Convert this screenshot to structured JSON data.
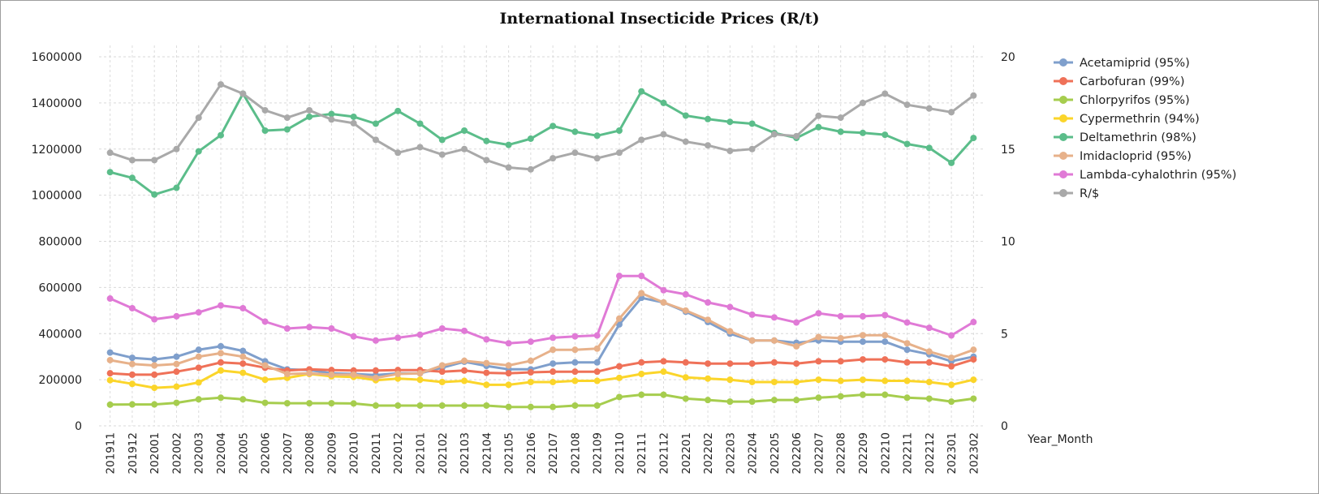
{
  "chart_data": {
    "type": "line",
    "title": "International Insecticide Prices (R/t)",
    "xlabel": "Year_Month",
    "ylabel": "",
    "y2label": "",
    "ylim": [
      0,
      1600000
    ],
    "y2lim": [
      0,
      20
    ],
    "yticks": [
      "0",
      "200000",
      "400000",
      "600000",
      "800000",
      "1000000",
      "1200000",
      "1400000",
      "1600000"
    ],
    "y2ticks": [
      "0",
      "5",
      "10",
      "15",
      "20"
    ],
    "grid": "on",
    "legend_position": "right",
    "categories": [
      "201911",
      "201912",
      "202001",
      "202002",
      "202003",
      "202004",
      "202005",
      "202006",
      "202007",
      "202008",
      "202009",
      "202010",
      "202011",
      "202012",
      "202101",
      "202102",
      "202103",
      "202104",
      "202105",
      "202106",
      "202107",
      "202108",
      "202109",
      "202110",
      "202111",
      "202112",
      "202201",
      "202202",
      "202203",
      "202204",
      "202205",
      "202206",
      "202207",
      "202208",
      "202209",
      "202210",
      "202211",
      "202212",
      "202301",
      "202302"
    ],
    "series": [
      {
        "name": "Acetamiprid (95%)",
        "axis": "left",
        "color": "#7f9fcc",
        "values": [
          318000,
          295000,
          288000,
          300000,
          330000,
          345000,
          325000,
          280000,
          245000,
          242000,
          228000,
          225000,
          220000,
          228000,
          228000,
          252000,
          278000,
          260000,
          245000,
          245000,
          270000,
          275000,
          275000,
          440000,
          555000,
          535000,
          495000,
          450000,
          400000,
          370000,
          370000,
          360000,
          370000,
          365000,
          365000,
          365000,
          330000,
          310000,
          280000,
          300000
        ]
      },
      {
        "name": "Carbofuran (99%)",
        "axis": "left",
        "color": "#ef7158",
        "values": [
          228000,
          222000,
          222000,
          235000,
          252000,
          275000,
          270000,
          252000,
          240000,
          245000,
          242000,
          240000,
          240000,
          242000,
          242000,
          235000,
          240000,
          230000,
          228000,
          232000,
          235000,
          235000,
          235000,
          258000,
          275000,
          280000,
          275000,
          270000,
          270000,
          270000,
          275000,
          270000,
          280000,
          280000,
          288000,
          288000,
          275000,
          275000,
          258000,
          288000
        ]
      },
      {
        "name": "Chlorpyrifos (95%)",
        "axis": "left",
        "color": "#a6cd4e",
        "values": [
          92000,
          93000,
          93000,
          100000,
          115000,
          122000,
          115000,
          100000,
          98000,
          98000,
          98000,
          97000,
          88000,
          88000,
          88000,
          88000,
          88000,
          88000,
          82000,
          82000,
          82000,
          88000,
          88000,
          125000,
          135000,
          135000,
          118000,
          112000,
          105000,
          105000,
          112000,
          112000,
          122000,
          128000,
          135000,
          135000,
          122000,
          118000,
          105000,
          118000
        ]
      },
      {
        "name": "Cypermethrin (94%)",
        "axis": "left",
        "color": "#fbd52a",
        "values": [
          198000,
          182000,
          165000,
          170000,
          188000,
          240000,
          230000,
          200000,
          208000,
          225000,
          215000,
          212000,
          198000,
          205000,
          200000,
          190000,
          195000,
          178000,
          178000,
          190000,
          190000,
          195000,
          195000,
          208000,
          225000,
          235000,
          210000,
          205000,
          200000,
          190000,
          190000,
          190000,
          200000,
          195000,
          200000,
          195000,
          195000,
          190000,
          178000,
          200000
        ]
      },
      {
        "name": "Deltamethrin (98%)",
        "axis": "left",
        "color": "#5bbd8a",
        "values": [
          1100000,
          1075000,
          1003000,
          1032000,
          1190000,
          1260000,
          1440000,
          1280000,
          1285000,
          1340000,
          1352000,
          1340000,
          1310000,
          1365000,
          1310000,
          1240000,
          1280000,
          1235000,
          1218000,
          1245000,
          1300000,
          1275000,
          1258000,
          1280000,
          1450000,
          1400000,
          1345000,
          1330000,
          1318000,
          1310000,
          1270000,
          1248000,
          1295000,
          1275000,
          1270000,
          1262000,
          1222000,
          1205000,
          1140000,
          1248000
        ]
      },
      {
        "name": "Imidacloprid (95%)",
        "axis": "left",
        "color": "#e7b18a",
        "values": [
          285000,
          268000,
          262000,
          268000,
          300000,
          315000,
          300000,
          262000,
          225000,
          228000,
          222000,
          222000,
          208000,
          225000,
          228000,
          262000,
          282000,
          272000,
          262000,
          282000,
          330000,
          330000,
          335000,
          465000,
          575000,
          535000,
          500000,
          460000,
          410000,
          370000,
          370000,
          345000,
          385000,
          380000,
          393000,
          393000,
          358000,
          322000,
          295000,
          330000
        ]
      },
      {
        "name": "Lambda-cyhalothrin (95%)",
        "axis": "left",
        "color": "#e07ad6",
        "values": [
          552000,
          510000,
          462000,
          475000,
          492000,
          522000,
          510000,
          452000,
          422000,
          428000,
          422000,
          388000,
          370000,
          382000,
          395000,
          422000,
          412000,
          375000,
          358000,
          365000,
          382000,
          388000,
          392000,
          650000,
          650000,
          588000,
          570000,
          535000,
          515000,
          482000,
          470000,
          448000,
          488000,
          475000,
          475000,
          480000,
          448000,
          425000,
          392000,
          450000
        ]
      },
      {
        "name": "R/$",
        "axis": "right",
        "color": "#a9a9a9",
        "values": [
          14.8,
          14.4,
          14.4,
          15.0,
          16.7,
          18.5,
          18.0,
          17.1,
          16.7,
          17.1,
          16.6,
          16.4,
          15.5,
          14.8,
          15.1,
          14.7,
          15.0,
          14.4,
          14.0,
          13.9,
          14.5,
          14.8,
          14.5,
          14.8,
          15.5,
          15.8,
          15.4,
          15.2,
          14.9,
          15.0,
          15.8,
          15.7,
          16.8,
          16.7,
          17.5,
          18.0,
          17.4,
          17.2,
          17.0,
          17.9
        ]
      }
    ]
  }
}
